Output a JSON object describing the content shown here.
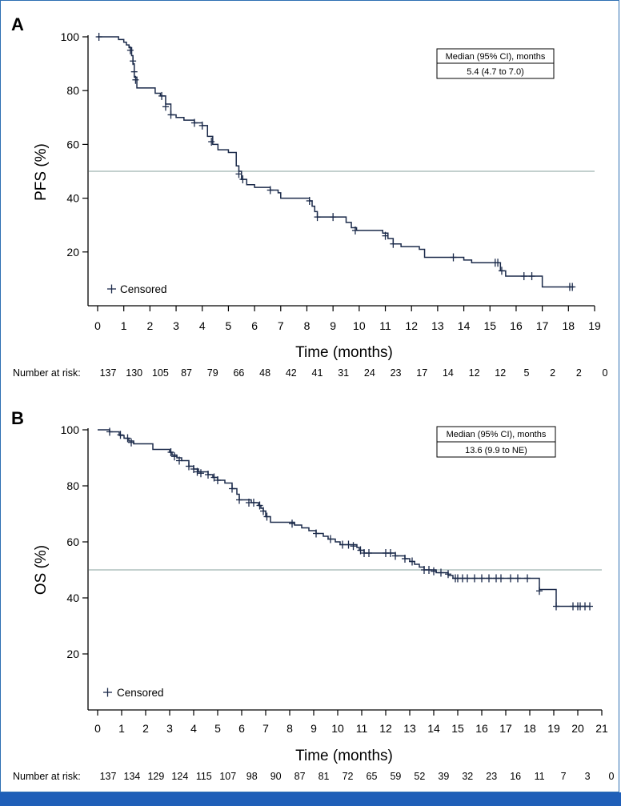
{
  "chart_data": [
    {
      "panel": "A",
      "type": "line",
      "subtype": "kaplan-meier",
      "title": "",
      "xlabel": "Time (months)",
      "ylabel": "PFS (%)",
      "xlim": [
        0,
        19
      ],
      "ylim": [
        0,
        100
      ],
      "xticks": [
        0,
        1,
        2,
        3,
        4,
        5,
        6,
        7,
        8,
        9,
        10,
        11,
        12,
        13,
        14,
        15,
        16,
        17,
        18,
        19
      ],
      "yticks": [
        20,
        40,
        60,
        80,
        100
      ],
      "reference_line_y": 50,
      "legend_label": "Censored",
      "median_box": {
        "header": "Median (95% CI), months",
        "value": "5.4 (4.7 to 7.0)"
      },
      "risk_label": "Number at risk:",
      "risk_values": [
        "137",
        "130",
        "105",
        "87",
        "79",
        "66",
        "48",
        "42",
        "41",
        "31",
        "24",
        "23",
        "17",
        "14",
        "12",
        "12",
        "5",
        "2",
        "2",
        "0"
      ],
      "curve": [
        [
          0,
          100
        ],
        [
          0.6,
          100
        ],
        [
          0.8,
          99
        ],
        [
          1.0,
          98
        ],
        [
          1.1,
          97
        ],
        [
          1.2,
          96
        ],
        [
          1.3,
          93
        ],
        [
          1.35,
          90
        ],
        [
          1.4,
          85
        ],
        [
          1.5,
          81
        ],
        [
          2.0,
          81
        ],
        [
          2.2,
          79
        ],
        [
          2.4,
          78
        ],
        [
          2.6,
          75
        ],
        [
          2.8,
          71
        ],
        [
          3.0,
          70
        ],
        [
          3.3,
          69
        ],
        [
          3.7,
          68
        ],
        [
          4.0,
          67
        ],
        [
          4.2,
          63
        ],
        [
          4.4,
          60
        ],
        [
          4.6,
          58
        ],
        [
          5.0,
          57
        ],
        [
          5.3,
          52
        ],
        [
          5.4,
          50
        ],
        [
          5.5,
          47
        ],
        [
          5.7,
          45
        ],
        [
          6.0,
          44
        ],
        [
          6.6,
          43
        ],
        [
          6.9,
          42
        ],
        [
          7.0,
          40
        ],
        [
          8.1,
          39
        ],
        [
          8.2,
          37
        ],
        [
          8.3,
          35
        ],
        [
          8.4,
          33
        ],
        [
          9.0,
          33
        ],
        [
          9.5,
          31
        ],
        [
          9.7,
          29
        ],
        [
          9.9,
          28
        ],
        [
          10.9,
          27
        ],
        [
          11.1,
          25
        ],
        [
          11.3,
          23
        ],
        [
          11.5,
          23
        ],
        [
          11.6,
          22
        ],
        [
          12.3,
          21
        ],
        [
          12.5,
          18
        ],
        [
          13.6,
          18
        ],
        [
          14.0,
          17
        ],
        [
          14.3,
          16
        ],
        [
          15.3,
          16
        ],
        [
          15.4,
          13
        ],
        [
          15.6,
          11
        ],
        [
          16.4,
          11
        ],
        [
          17.0,
          7
        ],
        [
          18.2,
          7
        ]
      ],
      "censored": [
        [
          0.05,
          100
        ],
        [
          1.25,
          95
        ],
        [
          1.35,
          91
        ],
        [
          1.4,
          87
        ],
        [
          1.45,
          84
        ],
        [
          2.45,
          78
        ],
        [
          2.6,
          74
        ],
        [
          2.8,
          71
        ],
        [
          3.7,
          68
        ],
        [
          4.0,
          67
        ],
        [
          4.35,
          61
        ],
        [
          5.4,
          49
        ],
        [
          5.55,
          47
        ],
        [
          6.6,
          43
        ],
        [
          8.1,
          39
        ],
        [
          8.4,
          33
        ],
        [
          9.0,
          33
        ],
        [
          9.85,
          28
        ],
        [
          11.0,
          26
        ],
        [
          11.3,
          23
        ],
        [
          13.6,
          18
        ],
        [
          15.2,
          16
        ],
        [
          15.3,
          16
        ],
        [
          15.45,
          13
        ],
        [
          16.3,
          11
        ],
        [
          16.6,
          11
        ],
        [
          18.05,
          7
        ],
        [
          18.15,
          7
        ]
      ]
    },
    {
      "panel": "B",
      "type": "line",
      "subtype": "kaplan-meier",
      "title": "",
      "xlabel": "Time (months)",
      "ylabel": "OS (%)",
      "xlim": [
        0,
        21
      ],
      "ylim": [
        0,
        100
      ],
      "xticks": [
        0,
        1,
        2,
        3,
        4,
        5,
        6,
        7,
        8,
        9,
        10,
        11,
        12,
        13,
        14,
        15,
        16,
        17,
        18,
        19,
        20,
        21
      ],
      "yticks": [
        20,
        40,
        60,
        80,
        100
      ],
      "reference_line_y": 50,
      "legend_label": "Censored",
      "median_box": {
        "header": "Median (95% CI), months",
        "value": "13.6 (9.9 to NE)"
      },
      "risk_label": "Number at risk:",
      "risk_values": [
        "137",
        "134",
        "129",
        "124",
        "115",
        "107",
        "98",
        "90",
        "87",
        "81",
        "72",
        "65",
        "59",
        "52",
        "39",
        "32",
        "23",
        "16",
        "11",
        "7",
        "3",
        "0"
      ],
      "curve": [
        [
          0,
          100
        ],
        [
          0.5,
          99.3
        ],
        [
          0.9,
          98
        ],
        [
          1.1,
          97
        ],
        [
          1.3,
          96
        ],
        [
          1.5,
          95
        ],
        [
          2.3,
          93
        ],
        [
          3.0,
          92
        ],
        [
          3.1,
          91
        ],
        [
          3.3,
          90
        ],
        [
          3.5,
          89
        ],
        [
          3.8,
          87
        ],
        [
          4.0,
          86
        ],
        [
          4.2,
          85
        ],
        [
          4.6,
          84
        ],
        [
          4.8,
          83
        ],
        [
          5.0,
          82
        ],
        [
          5.3,
          81
        ],
        [
          5.6,
          79
        ],
        [
          5.8,
          77
        ],
        [
          5.9,
          75
        ],
        [
          6.4,
          74
        ],
        [
          6.7,
          73
        ],
        [
          6.8,
          72
        ],
        [
          6.9,
          71
        ],
        [
          7.0,
          69
        ],
        [
          7.2,
          67
        ],
        [
          8.0,
          67
        ],
        [
          8.2,
          66
        ],
        [
          8.5,
          65
        ],
        [
          8.8,
          64
        ],
        [
          9.1,
          63
        ],
        [
          9.4,
          62
        ],
        [
          9.6,
          61
        ],
        [
          9.9,
          60
        ],
        [
          10.1,
          59
        ],
        [
          10.8,
          58
        ],
        [
          10.9,
          57
        ],
        [
          11.1,
          56
        ],
        [
          12.2,
          56
        ],
        [
          12.4,
          55
        ],
        [
          12.8,
          54
        ],
        [
          13.0,
          53
        ],
        [
          13.2,
          52
        ],
        [
          13.4,
          51
        ],
        [
          13.6,
          50
        ],
        [
          14.1,
          49
        ],
        [
          14.6,
          48
        ],
        [
          14.8,
          47
        ],
        [
          18.3,
          47
        ],
        [
          18.4,
          43
        ],
        [
          19.0,
          43
        ],
        [
          19.1,
          37
        ],
        [
          20.5,
          37
        ]
      ],
      "censored": [
        [
          0.5,
          99.3
        ],
        [
          0.95,
          98.2
        ],
        [
          1.25,
          97
        ],
        [
          1.4,
          95.5
        ],
        [
          3.05,
          92
        ],
        [
          3.2,
          90.5
        ],
        [
          3.4,
          89
        ],
        [
          3.8,
          87
        ],
        [
          4.0,
          86
        ],
        [
          4.15,
          85
        ],
        [
          4.3,
          84.5
        ],
        [
          4.6,
          84
        ],
        [
          4.85,
          83
        ],
        [
          5.0,
          82
        ],
        [
          5.6,
          79
        ],
        [
          5.9,
          75
        ],
        [
          6.3,
          74
        ],
        [
          6.5,
          74
        ],
        [
          6.75,
          73
        ],
        [
          6.9,
          71
        ],
        [
          7.05,
          69
        ],
        [
          8.1,
          66.5
        ],
        [
          9.1,
          63
        ],
        [
          9.7,
          61
        ],
        [
          10.2,
          59
        ],
        [
          10.45,
          59
        ],
        [
          10.65,
          58.5
        ],
        [
          10.95,
          57
        ],
        [
          11.1,
          56
        ],
        [
          11.3,
          56
        ],
        [
          12.0,
          56
        ],
        [
          12.2,
          56
        ],
        [
          12.4,
          55
        ],
        [
          12.8,
          54
        ],
        [
          13.1,
          53
        ],
        [
          13.6,
          50
        ],
        [
          13.8,
          50
        ],
        [
          14.0,
          49.5
        ],
        [
          14.3,
          49
        ],
        [
          14.6,
          48.5
        ],
        [
          14.9,
          47
        ],
        [
          15.0,
          47
        ],
        [
          15.2,
          47
        ],
        [
          15.4,
          47
        ],
        [
          15.7,
          47
        ],
        [
          16.0,
          47
        ],
        [
          16.3,
          47
        ],
        [
          16.6,
          47
        ],
        [
          16.8,
          47
        ],
        [
          17.2,
          47
        ],
        [
          17.5,
          47
        ],
        [
          17.9,
          47
        ],
        [
          18.4,
          42.5
        ],
        [
          19.1,
          37
        ],
        [
          19.8,
          37
        ],
        [
          20.0,
          37
        ],
        [
          20.1,
          37
        ],
        [
          20.3,
          37
        ],
        [
          20.5,
          37
        ]
      ]
    }
  ]
}
